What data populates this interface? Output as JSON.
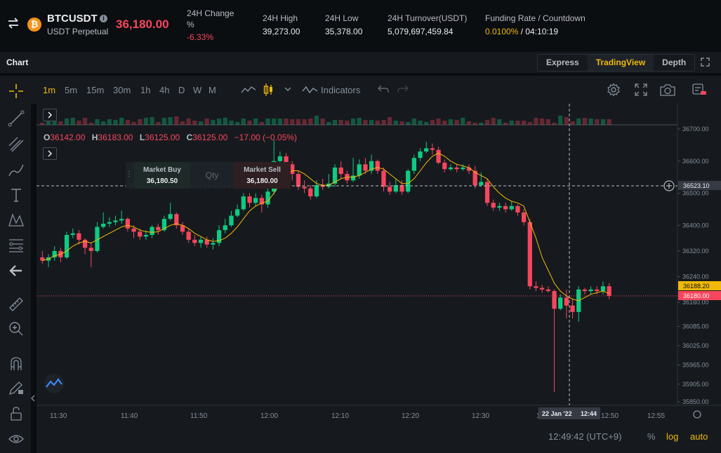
{
  "ticker": {
    "symbol": "BTCUSDT",
    "coin_logo_text": "₿",
    "contract_type": "USDT Perpetual",
    "last_price": "36,180.00",
    "change_label": "24H Change %",
    "change_value": "-6.33%",
    "high_label": "24H High",
    "high_value": "39,273.00",
    "low_label": "24H Low",
    "low_value": "35,378.00",
    "turnover_label": "24H Turnover(USDT)",
    "turnover_value": "5,079,697,459.84",
    "funding_label": "Funding Rate / Countdown",
    "funding_rate": "0.0100%",
    "countdown": " / 04:10:19"
  },
  "chart_header": {
    "title": "Chart",
    "views": [
      "Express",
      "TradingView",
      "Depth"
    ],
    "active_view": "TradingView"
  },
  "toolbar": {
    "intervals": [
      "1m",
      "5m",
      "15m",
      "30m",
      "1h",
      "4h",
      "D",
      "W",
      "M"
    ],
    "active_interval": "1m",
    "indicators_label": "Indicators"
  },
  "legend": {
    "o_key": "O",
    "o_val": "36142.00",
    "h_key": "H",
    "h_val": "36183.00",
    "l_key": "L",
    "l_val": "36125.00",
    "c_key": "C",
    "c_val": "36125.00",
    "change": "−17.00 (−0.05%)"
  },
  "trade_widget": {
    "buy_label": "Market Buy",
    "buy_price": "36,180.50",
    "qty_placeholder": "Qty",
    "sell_label": "Market Sell",
    "sell_price": "36,180.00"
  },
  "footer": {
    "clock": "12:49:42 (UTC+9)",
    "percent": "%",
    "log": "log",
    "auto": "auto"
  },
  "colors": {
    "up": "#0ecb81",
    "down": "#f6465d",
    "ma": "#f0b90b",
    "accent": "#f0b90b"
  },
  "chart_data": {
    "type": "candlestick",
    "y_ticks": [
      36700,
      36600,
      36500,
      36400,
      36320,
      36240,
      36160,
      36085,
      36025,
      35965,
      35905,
      35850
    ],
    "y_tick_labels": [
      "36700.00",
      "36600.00",
      "36500.00",
      "36400.00",
      "36320.00",
      "36240.00",
      "36160.00",
      "36085.00",
      "36025.00",
      "35965.00",
      "35905.00",
      "35850.00"
    ],
    "x_ticks": [
      "11:30",
      "11:40",
      "11:50",
      "12:00",
      "12:10",
      "12:20",
      "12:30",
      "12:40",
      "12:50",
      "12:55"
    ],
    "crosshair_price": "36523.10",
    "crosshair_time": "22 Jan '22",
    "crosshair_clock": "12:44",
    "ma_price": "36188.20",
    "last_price_tag": "36180.00",
    "candles": [
      [
        36300,
        36290,
        36320,
        36280
      ],
      [
        36290,
        36300,
        36310,
        36270
      ],
      [
        36300,
        36320,
        36335,
        36290
      ],
      [
        36320,
        36300,
        36330,
        36285
      ],
      [
        36300,
        36370,
        36380,
        36295
      ],
      [
        36370,
        36375,
        36390,
        36360
      ],
      [
        36375,
        36355,
        36385,
        36340
      ],
      [
        36355,
        36330,
        36360,
        36310
      ],
      [
        36330,
        36320,
        36345,
        36270
      ],
      [
        36320,
        36395,
        36410,
        36315
      ],
      [
        36395,
        36405,
        36440,
        36390
      ],
      [
        36405,
        36410,
        36425,
        36395
      ],
      [
        36410,
        36415,
        36430,
        36400
      ],
      [
        36415,
        36420,
        36445,
        36405
      ],
      [
        36420,
        36390,
        36425,
        36380
      ],
      [
        36390,
        36380,
        36400,
        36360
      ],
      [
        36380,
        36365,
        36390,
        36355
      ],
      [
        36365,
        36370,
        36385,
        36355
      ],
      [
        36370,
        36395,
        36400,
        36360
      ],
      [
        36395,
        36385,
        36405,
        36370
      ],
      [
        36385,
        36420,
        36430,
        36380
      ],
      [
        36420,
        36435,
        36470,
        36415
      ],
      [
        36435,
        36400,
        36440,
        36390
      ],
      [
        36400,
        36380,
        36410,
        36370
      ],
      [
        36380,
        36355,
        36390,
        36345
      ],
      [
        36355,
        36345,
        36370,
        36335
      ],
      [
        36345,
        36355,
        36365,
        36330
      ],
      [
        36355,
        36340,
        36365,
        36330
      ],
      [
        36340,
        36345,
        36360,
        36325
      ],
      [
        36345,
        36385,
        36400,
        36335
      ],
      [
        36385,
        36400,
        36420,
        36375
      ],
      [
        36400,
        36430,
        36445,
        36395
      ],
      [
        36430,
        36450,
        36465,
        36425
      ],
      [
        36450,
        36490,
        36500,
        36445
      ],
      [
        36490,
        36470,
        36500,
        36455
      ],
      [
        36470,
        36485,
        36500,
        36460
      ],
      [
        36485,
        36465,
        36495,
        36440
      ],
      [
        36465,
        36505,
        36520,
        36455
      ],
      [
        36505,
        36600,
        36665,
        36495
      ],
      [
        36600,
        36615,
        36630,
        36580
      ],
      [
        36615,
        36590,
        36625,
        36570
      ],
      [
        36590,
        36560,
        36600,
        36540
      ],
      [
        36560,
        36520,
        36570,
        36510
      ],
      [
        36520,
        36515,
        36540,
        36500
      ],
      [
        36515,
        36490,
        36525,
        36480
      ],
      [
        36490,
        36525,
        36540,
        36485
      ],
      [
        36525,
        36520,
        36545,
        36510
      ],
      [
        36520,
        36530,
        36560,
        36515
      ],
      [
        36530,
        36580,
        36590,
        36520
      ],
      [
        36580,
        36560,
        36600,
        36545
      ],
      [
        36560,
        36540,
        36570,
        36530
      ],
      [
        36540,
        36555,
        36610,
        36535
      ],
      [
        36555,
        36590,
        36605,
        36545
      ],
      [
        36590,
        36570,
        36610,
        36560
      ],
      [
        36570,
        36600,
        36620,
        36560
      ],
      [
        36600,
        36570,
        36605,
        36560
      ],
      [
        36570,
        36520,
        36580,
        36505
      ],
      [
        36520,
        36505,
        36535,
        36495
      ],
      [
        36505,
        36525,
        36545,
        36500
      ],
      [
        36525,
        36505,
        36540,
        36495
      ],
      [
        36505,
        36570,
        36575,
        36500
      ],
      [
        36570,
        36610,
        36620,
        36560
      ],
      [
        36610,
        36630,
        36640,
        36600
      ],
      [
        36630,
        36640,
        36660,
        36625
      ],
      [
        36640,
        36635,
        36655,
        36620
      ],
      [
        36635,
        36595,
        36645,
        36590
      ],
      [
        36595,
        36575,
        36605,
        36565
      ],
      [
        36575,
        36580,
        36590,
        36570
      ],
      [
        36580,
        36575,
        36590,
        36565
      ],
      [
        36575,
        36580,
        36590,
        36570
      ],
      [
        36580,
        36570,
        36590,
        36560
      ],
      [
        36570,
        36525,
        36585,
        36515
      ],
      [
        36525,
        36535,
        36565,
        36520
      ],
      [
        36535,
        36470,
        36545,
        36460
      ],
      [
        36470,
        36455,
        36480,
        36445
      ],
      [
        36455,
        36460,
        36470,
        36445
      ],
      [
        36460,
        36450,
        36470,
        36440
      ],
      [
        36450,
        36460,
        36475,
        36445
      ],
      [
        36460,
        36440,
        36465,
        36430
      ],
      [
        36440,
        36410,
        36450,
        36400
      ],
      [
        36410,
        36210,
        36420,
        36200
      ],
      [
        36210,
        36205,
        36225,
        36195
      ],
      [
        36205,
        36200,
        36215,
        36190
      ],
      [
        36200,
        36195,
        36210,
        36190
      ],
      [
        36195,
        36140,
        36200,
        35880
      ],
      [
        36140,
        36175,
        36185,
        36135
      ],
      [
        36175,
        36150,
        36200,
        36110
      ],
      [
        36150,
        36130,
        36170,
        36110
      ],
      [
        36130,
        36200,
        36210,
        36100
      ],
      [
        36200,
        36195,
        36205,
        36185
      ],
      [
        36195,
        36200,
        36210,
        36185
      ],
      [
        36200,
        36195,
        36210,
        36185
      ],
      [
        36195,
        36210,
        36225,
        36185
      ],
      [
        36210,
        36180,
        36220,
        36170
      ]
    ],
    "ma": [
      36290,
      36295,
      36305,
      36310,
      36320,
      36335,
      36345,
      36350,
      36345,
      36355,
      36365,
      36375,
      36385,
      36395,
      36400,
      36395,
      36385,
      36380,
      36378,
      36380,
      36390,
      36400,
      36405,
      36400,
      36390,
      36375,
      36365,
      36355,
      36350,
      36352,
      36360,
      36375,
      36395,
      36420,
      36445,
      36460,
      36470,
      36475,
      36500,
      36530,
      36555,
      36570,
      36570,
      36560,
      36545,
      36530,
      36525,
      36525,
      36535,
      36545,
      36550,
      36550,
      36555,
      36565,
      36575,
      36580,
      36575,
      36560,
      36545,
      36530,
      36530,
      36545,
      36570,
      36595,
      36615,
      36625,
      36615,
      36600,
      36590,
      36585,
      36580,
      36565,
      36555,
      36545,
      36520,
      36500,
      36485,
      36475,
      36470,
      36460,
      36410,
      36360,
      36300,
      36260,
      36220,
      36195,
      36180,
      36170,
      36165,
      36175,
      36185,
      36190,
      36195,
      36188
    ]
  }
}
